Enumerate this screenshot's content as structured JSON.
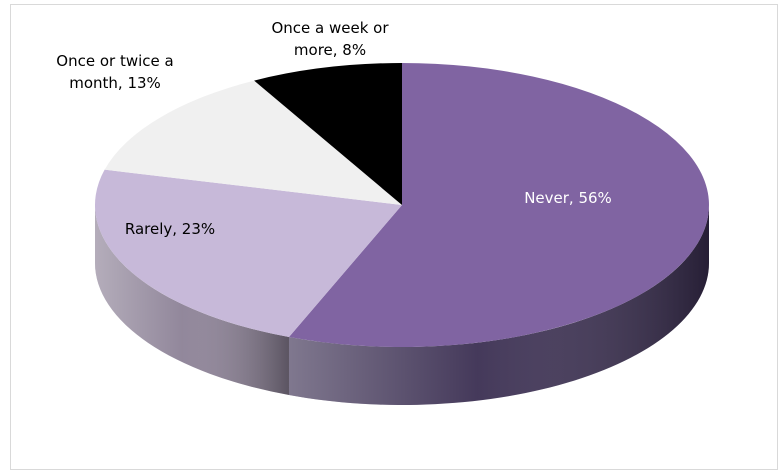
{
  "chart_data": {
    "type": "pie",
    "style": "3d",
    "categories": [
      "Never",
      "Rarely",
      "Once or twice a month",
      "Once a week or more"
    ],
    "values": [
      56,
      23,
      13,
      8
    ],
    "labels": [
      [
        "Never, 56%"
      ],
      [
        "Rarely, 23%"
      ],
      [
        "Once or twice a",
        "month, 13%"
      ],
      [
        "Once a week or",
        "more, 8%"
      ]
    ],
    "colors": {
      "top": [
        "#8064a2",
        "#c7b9d9",
        "#f0f0f0",
        "#000000"
      ],
      "side": [
        "#3b2f52",
        "#8c8196",
        "#b0b0b0",
        "#000000"
      ],
      "label": [
        "#ffffff",
        "#000000",
        "#000000",
        "#000000"
      ]
    },
    "title": "",
    "legend": "none"
  }
}
